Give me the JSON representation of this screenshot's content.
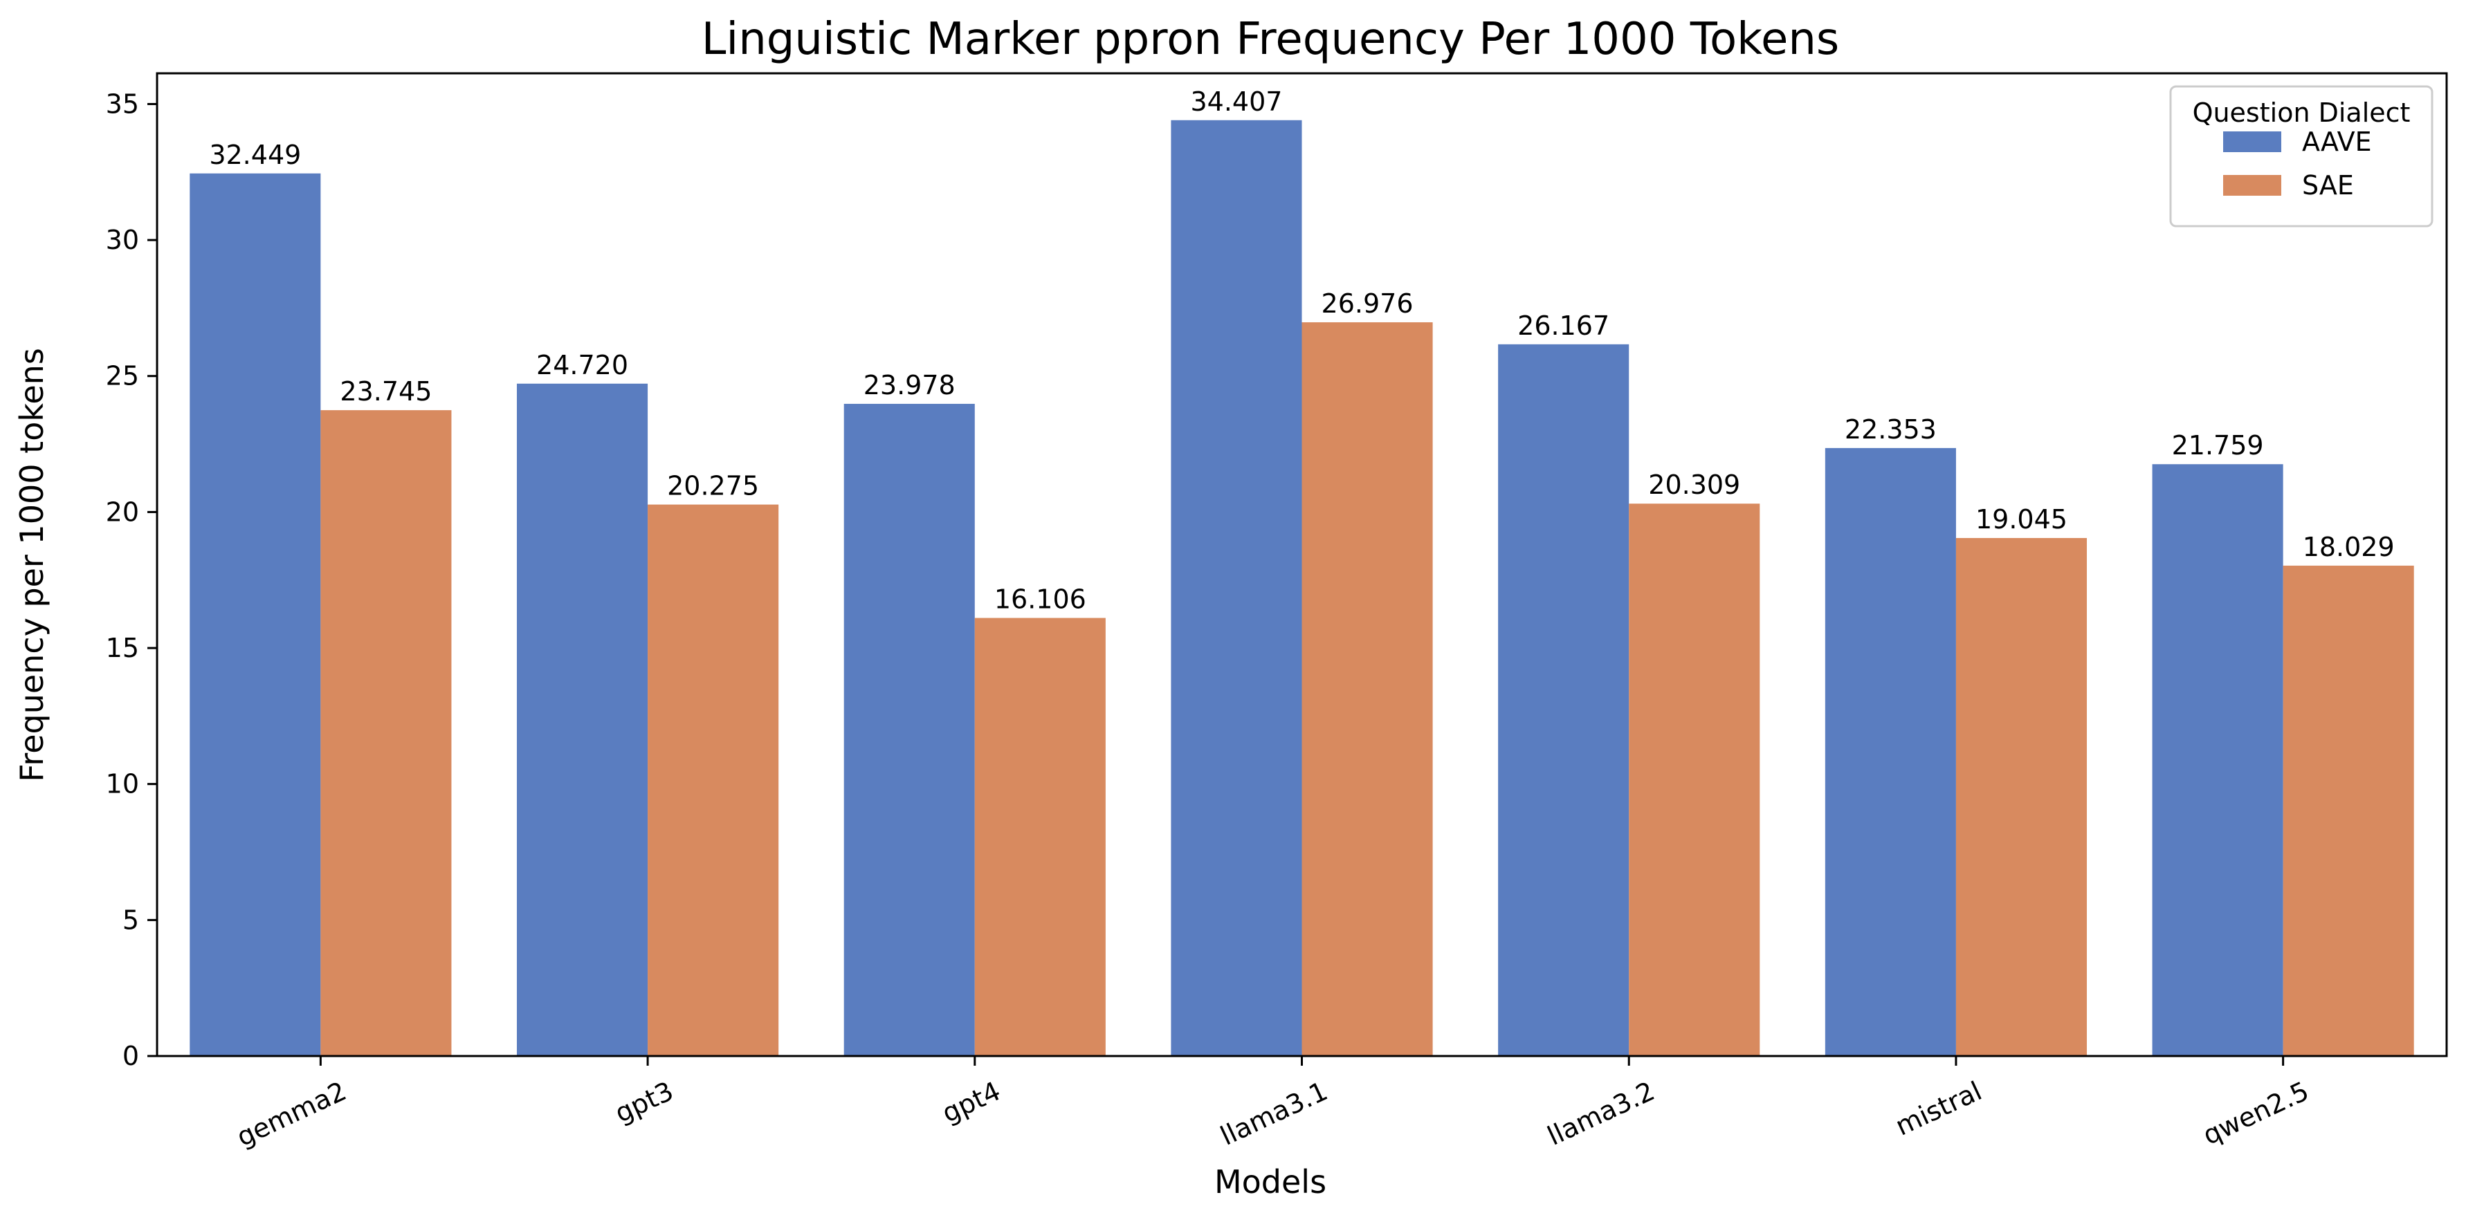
{
  "chart_data": {
    "type": "bar",
    "title": "Linguistic Marker ppron Frequency Per 1000 Tokens",
    "xlabel": "Models",
    "ylabel": "Frequency per 1000 tokens",
    "categories": [
      "gemma2",
      "gpt3",
      "gpt4",
      "llama3.1",
      "llama3.2",
      "mistral",
      "qwen2.5"
    ],
    "series": [
      {
        "name": "AAVE",
        "color": "#5a7dc0",
        "values": [
          32.449,
          24.72,
          23.978,
          34.407,
          26.167,
          22.353,
          21.759
        ],
        "labels": [
          "32.449",
          "24.720",
          "23.978",
          "34.407",
          "26.167",
          "22.353",
          "21.759"
        ]
      },
      {
        "name": "SAE",
        "color": "#d88a5f",
        "values": [
          23.745,
          20.275,
          16.106,
          26.976,
          20.309,
          19.045,
          18.029
        ],
        "labels": [
          "23.745",
          "20.275",
          "16.106",
          "26.976",
          "20.309",
          "19.045",
          "18.029"
        ]
      }
    ],
    "ylim": [
      0,
      36.13
    ],
    "yticks": [
      0,
      5,
      10,
      15,
      20,
      25,
      30,
      35
    ],
    "grid": false,
    "legend": {
      "title": "Question Dialect",
      "placement": "top-right"
    }
  }
}
